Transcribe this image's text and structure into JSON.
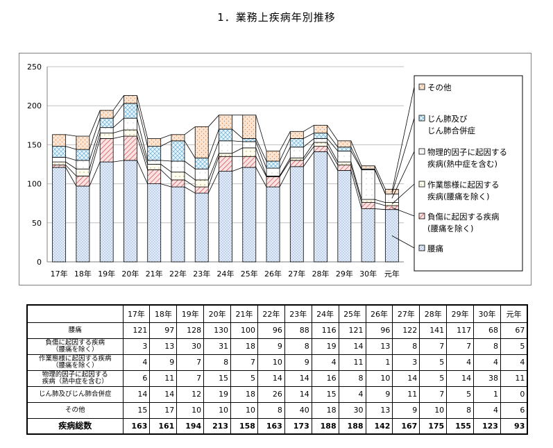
{
  "title": "1．業務上疾病年別推移",
  "chart_data": {
    "type": "bar",
    "stacked": true,
    "categories": [
      "17年",
      "18年",
      "19年",
      "20年",
      "21年",
      "22年",
      "23年",
      "24年",
      "25年",
      "26年",
      "27年",
      "28年",
      "29年",
      "30年",
      "元年"
    ],
    "series": [
      {
        "name": "腰痛",
        "values": [
          121,
          97,
          128,
          130,
          100,
          96,
          88,
          116,
          121,
          96,
          122,
          141,
          117,
          68,
          67
        ],
        "color": "#dce9f7"
      },
      {
        "name": "負傷に起因する疾病\n(腰痛を除く)",
        "values": [
          3,
          13,
          30,
          31,
          18,
          9,
          8,
          19,
          14,
          13,
          8,
          7,
          7,
          8,
          5
        ],
        "color": "#f3c6c6"
      },
      {
        "name": "作業態様に起因する\n疾病(腰痛を除く)",
        "values": [
          4,
          9,
          7,
          8,
          7,
          10,
          9,
          4,
          11,
          1,
          3,
          5,
          4,
          4,
          4
        ],
        "color": "#fffbe6"
      },
      {
        "name": "物理的因子に起因する\n疾病(熱中症を含む)",
        "values": [
          6,
          11,
          7,
          15,
          5,
          14,
          14,
          16,
          8,
          10,
          14,
          5,
          14,
          38,
          11
        ],
        "color": "#ffffff"
      },
      {
        "name": "じん肺及び\nじん肺合併症",
        "values": [
          14,
          14,
          12,
          19,
          18,
          26,
          14,
          15,
          4,
          9,
          11,
          7,
          5,
          1,
          0
        ],
        "color": "#d9eef8"
      },
      {
        "name": "その他",
        "values": [
          15,
          17,
          10,
          10,
          10,
          8,
          40,
          18,
          30,
          13,
          9,
          10,
          8,
          4,
          6
        ],
        "color": "#f8d8c0"
      }
    ],
    "yticks": [
      0,
      50,
      100,
      150,
      200,
      250
    ],
    "ylim": [
      0,
      250
    ],
    "legend": "right",
    "grid": true
  },
  "table": {
    "headers": [
      "17年",
      "18年",
      "19年",
      "20年",
      "21年",
      "22年",
      "23年",
      "24年",
      "25年",
      "26年",
      "27年",
      "28年",
      "29年",
      "30年",
      "元年"
    ],
    "rows": [
      {
        "label": "腰痛",
        "values": [
          "121",
          "97",
          "128",
          "130",
          "100",
          "96",
          "88",
          "116",
          "121",
          "96",
          "122",
          "141",
          "117",
          "68",
          "67"
        ]
      },
      {
        "label": "負傷に起因する疾病\n（腰痛を除く）",
        "values": [
          "3",
          "13",
          "30",
          "31",
          "18",
          "9",
          "8",
          "19",
          "14",
          "13",
          "8",
          "7",
          "7",
          "8",
          "5"
        ]
      },
      {
        "label": "作業態様に起因する疾病\n（腰痛を除く）",
        "values": [
          "4",
          "9",
          "7",
          "8",
          "7",
          "10",
          "9",
          "4",
          "11",
          "1",
          "3",
          "5",
          "4",
          "4",
          "4"
        ]
      },
      {
        "label": "物理的因子に起因する\n疾病（熱中症を含む）",
        "values": [
          "6",
          "11",
          "7",
          "15",
          "5",
          "14",
          "14",
          "16",
          "8",
          "10",
          "14",
          "5",
          "14",
          "38",
          "11"
        ]
      },
      {
        "label": "じん肺及びじん肺合併症",
        "values": [
          "14",
          "14",
          "12",
          "19",
          "18",
          "26",
          "14",
          "15",
          "4",
          "9",
          "11",
          "7",
          "5",
          "1",
          "0"
        ]
      },
      {
        "label": "その他",
        "values": [
          "15",
          "17",
          "10",
          "10",
          "10",
          "8",
          "40",
          "18",
          "30",
          "13",
          "9",
          "10",
          "8",
          "4",
          "6"
        ]
      }
    ],
    "total": {
      "label": "疾病総数",
      "values": [
        "163",
        "161",
        "194",
        "213",
        "158",
        "163",
        "173",
        "188",
        "188",
        "142",
        "167",
        "175",
        "155",
        "123",
        "93"
      ]
    }
  }
}
